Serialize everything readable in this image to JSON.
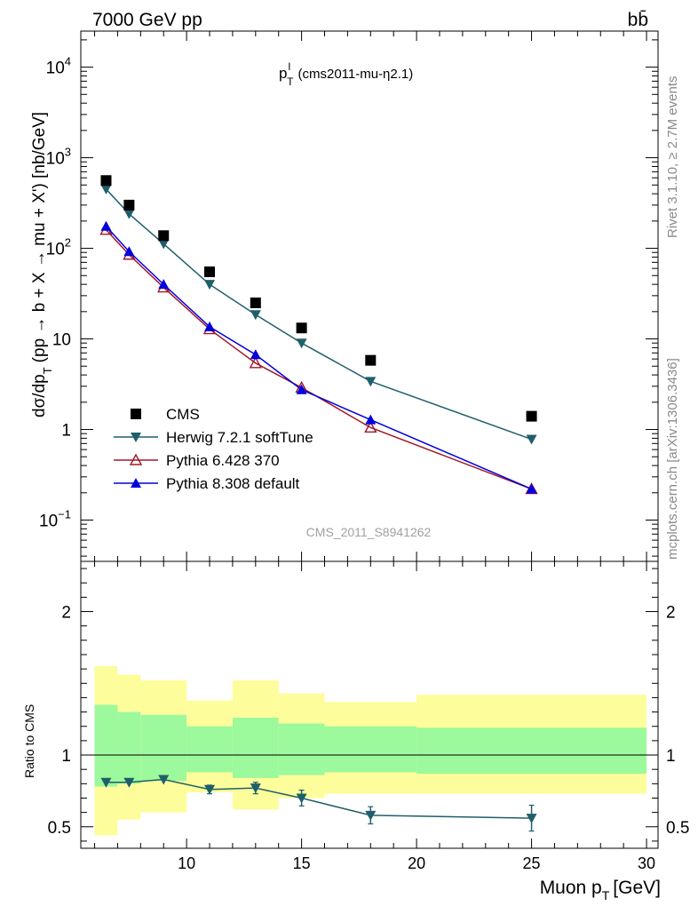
{
  "header": {
    "left": "7000 GeV pp",
    "right": "bb̄",
    "side_top": "Rivet 3.1.10, ≥ 2.7M events",
    "side_bottom": "mcplots.cern.ch [arXiv:1306.3436]",
    "watermark": "CMS_2011_S8941262"
  },
  "chart_data": [
    {
      "type": "line",
      "panel": "main",
      "title_main": "p",
      "title_sup": "l",
      "title_sub": "T",
      "title_rest": "(cms2011-mu-η2.1)",
      "ylabel": "dσ/dp",
      "ylabel_sub": "T",
      "ylabel_rest": "(pp → b + X → mu + X') [nb/GeV]",
      "yscale": "log",
      "ylim": [
        0.035,
        25000
      ],
      "xlim": [
        5.4,
        30.5
      ],
      "y_ticks": [
        {
          "v": 0.1,
          "base": "10",
          "exp": "−1"
        },
        {
          "v": 1,
          "base": "1",
          "exp": ""
        },
        {
          "v": 10,
          "base": "10",
          "exp": ""
        },
        {
          "v": 100,
          "base": "10",
          "exp": "2"
        },
        {
          "v": 1000,
          "base": "10",
          "exp": "3"
        },
        {
          "v": 10000,
          "base": "10",
          "exp": "4"
        }
      ],
      "legend_position": "bottom-left",
      "series": [
        {
          "name": "CMS",
          "color": "#000000",
          "marker": "square",
          "x": [
            6.5,
            7.5,
            9.0,
            11.0,
            13.0,
            15.0,
            18.0,
            25.0
          ],
          "y": [
            560,
            300,
            138,
            55,
            25,
            13.2,
            5.8,
            1.4
          ]
        },
        {
          "name": "Herwig 7.2.1 softTune",
          "color": "#1f5f6b",
          "marker": "triangle-down",
          "x": [
            6.5,
            7.5,
            9.0,
            11.0,
            13.0,
            15.0,
            18.0,
            25.0
          ],
          "y": [
            450,
            240,
            112,
            40,
            18.5,
            9.0,
            3.4,
            0.78
          ]
        },
        {
          "name": "Pythia 6.428 370",
          "color": "#a0182a",
          "marker": "triangle-up-open",
          "x": [
            6.5,
            7.5,
            9.0,
            11.0,
            13.0,
            15.0,
            18.0,
            25.0
          ],
          "y": [
            160,
            85,
            37,
            12.8,
            5.4,
            2.9,
            1.05,
            0.22
          ]
        },
        {
          "name": "Pythia 8.308 default",
          "color": "#0000dd",
          "marker": "triangle-up",
          "x": [
            6.5,
            7.5,
            9.0,
            11.0,
            13.0,
            15.0,
            18.0,
            25.0
          ],
          "y": [
            175,
            92,
            40,
            13.6,
            6.7,
            2.75,
            1.28,
            0.22
          ]
        }
      ]
    },
    {
      "type": "line",
      "panel": "ratio",
      "ylabel": "Ratio to CMS",
      "xlabel_main": "Muon p",
      "xlabel_sub": "T",
      "xlabel_rest": "[GeV]",
      "ylim": [
        0.35,
        2.35
      ],
      "xlim": [
        5.4,
        30.5
      ],
      "x_ticks": [
        10,
        15,
        20,
        25,
        30
      ],
      "y_ticks": [
        0.5,
        1,
        2
      ],
      "bands": [
        {
          "x0": 6.0,
          "x1": 7.0,
          "y_lo": 0.44,
          "y_hi": 1.62,
          "g_lo": 0.78,
          "g_hi": 1.35
        },
        {
          "x0": 7.0,
          "x1": 8.0,
          "y_lo": 0.55,
          "y_hi": 1.56,
          "g_lo": 0.8,
          "g_hi": 1.3
        },
        {
          "x0": 8.0,
          "x1": 10.0,
          "y_lo": 0.6,
          "y_hi": 1.52,
          "g_lo": 0.82,
          "g_hi": 1.28
        },
        {
          "x0": 10.0,
          "x1": 12.0,
          "y_lo": 0.74,
          "y_hi": 1.38,
          "g_lo": 0.88,
          "g_hi": 1.2
        },
        {
          "x0": 12.0,
          "x1": 14.0,
          "y_lo": 0.62,
          "y_hi": 1.52,
          "g_lo": 0.84,
          "g_hi": 1.26
        },
        {
          "x0": 14.0,
          "x1": 16.0,
          "y_lo": 0.7,
          "y_hi": 1.43,
          "g_lo": 0.86,
          "g_hi": 1.22
        },
        {
          "x0": 16.0,
          "x1": 20.0,
          "y_lo": 0.73,
          "y_hi": 1.37,
          "g_lo": 0.88,
          "g_hi": 1.2
        },
        {
          "x0": 20.0,
          "x1": 30.0,
          "y_lo": 0.73,
          "y_hi": 1.42,
          "g_lo": 0.87,
          "g_hi": 1.19
        }
      ],
      "series": [
        {
          "name": "Herwig 7.2.1 softTune",
          "color": "#1f5f6b",
          "marker": "triangle-down",
          "x": [
            6.5,
            7.5,
            9.0,
            11.0,
            13.0,
            15.0,
            18.0,
            25.0
          ],
          "y": [
            0.81,
            0.81,
            0.83,
            0.76,
            0.77,
            0.7,
            0.58,
            0.56
          ],
          "err": [
            0.012,
            0.012,
            0.012,
            0.03,
            0.04,
            0.055,
            0.06,
            0.09
          ]
        }
      ]
    }
  ]
}
